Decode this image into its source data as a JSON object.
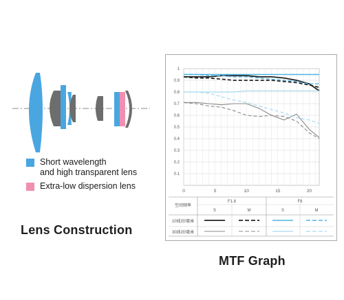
{
  "lens_construction": {
    "title": "Lens Construction",
    "legend": [
      {
        "text": "Short wavelength\nand high transparent lens",
        "color": "#4aa6e0",
        "icon": "blue-square"
      },
      {
        "text": "Extra-low dispersion lens",
        "color": "#f28fb0",
        "icon": "pink-square"
      }
    ],
    "colors": {
      "blue_lens": "#4aa6e0",
      "pink_lens": "#f28fb0",
      "gray_lens": "#6d6d6d",
      "axis": "#8a8a8a"
    }
  },
  "mtf_graph": {
    "title": "MTF Graph",
    "table": {
      "header_col": "空间频率",
      "apertures": [
        "F1.8",
        "F8"
      ],
      "sub_labels": [
        "S",
        "M",
        "S",
        "M"
      ],
      "rows": [
        "10线对/毫米",
        "30线对/毫米"
      ]
    },
    "colors": {
      "f18": "#222222",
      "f18_30": "#8a8a8a",
      "f8_10": "#4fb3e3",
      "f8_30": "#a8daf2",
      "grid": "#cfcfcf"
    }
  },
  "chart_data": {
    "type": "line",
    "title": "MTF Graph",
    "xlabel": "",
    "ylabel": "",
    "xlim": [
      0,
      21.6
    ],
    "ylim": [
      0,
      1
    ],
    "xticks": [
      0,
      5,
      10,
      15,
      20
    ],
    "yticks": [
      0.1,
      0.2,
      0.3,
      0.4,
      0.5,
      0.6,
      0.7,
      0.8,
      0.9,
      1
    ],
    "ytick_labels": [
      "0.1",
      "0.2",
      "0.3",
      "0.4",
      "0.5",
      "0.6",
      "0.7",
      "0.8",
      "0.9",
      "1"
    ],
    "grid": true,
    "x": [
      0,
      2,
      4,
      6,
      8,
      10,
      12,
      14,
      16,
      18,
      20,
      21.6
    ],
    "series": [
      {
        "aperture": "F1.8",
        "freq": "10",
        "orientation": "S",
        "color": "#222222",
        "dash": "solid",
        "width": 1.8,
        "values": [
          0.93,
          0.93,
          0.93,
          0.94,
          0.94,
          0.94,
          0.93,
          0.93,
          0.92,
          0.9,
          0.87,
          0.81
        ]
      },
      {
        "aperture": "F1.8",
        "freq": "10",
        "orientation": "M",
        "color": "#222222",
        "dash": "dashed",
        "width": 1.8,
        "values": [
          0.93,
          0.92,
          0.92,
          0.91,
          0.9,
          0.9,
          0.9,
          0.9,
          0.89,
          0.88,
          0.86,
          0.84
        ]
      },
      {
        "aperture": "F1.8",
        "freq": "30",
        "orientation": "S",
        "color": "#8a8a8a",
        "dash": "solid",
        "width": 1.1,
        "values": [
          0.71,
          0.71,
          0.7,
          0.69,
          0.7,
          0.7,
          0.66,
          0.6,
          0.56,
          0.61,
          0.48,
          0.41
        ]
      },
      {
        "aperture": "F1.8",
        "freq": "30",
        "orientation": "M",
        "color": "#8a8a8a",
        "dash": "dashed",
        "width": 1.1,
        "values": [
          0.71,
          0.7,
          0.68,
          0.67,
          0.64,
          0.6,
          0.59,
          0.6,
          0.59,
          0.55,
          0.45,
          0.4
        ]
      },
      {
        "aperture": "F8",
        "freq": "10",
        "orientation": "S",
        "color": "#4fb3e3",
        "dash": "solid",
        "width": 1.4,
        "values": [
          0.95,
          0.95,
          0.95,
          0.95,
          0.95,
          0.95,
          0.95,
          0.95,
          0.95,
          0.95,
          0.95,
          0.95
        ]
      },
      {
        "aperture": "F8",
        "freq": "10",
        "orientation": "M",
        "color": "#4fb3e3",
        "dash": "dashed",
        "width": 1.4,
        "values": [
          0.95,
          0.95,
          0.94,
          0.94,
          0.93,
          0.93,
          0.92,
          0.91,
          0.9,
          0.89,
          0.87,
          0.87
        ]
      },
      {
        "aperture": "F8",
        "freq": "30",
        "orientation": "S",
        "color": "#a8daf2",
        "dash": "solid",
        "width": 1.2,
        "values": [
          0.8,
          0.8,
          0.8,
          0.8,
          0.8,
          0.81,
          0.81,
          0.81,
          0.81,
          0.81,
          0.81,
          0.81
        ]
      },
      {
        "aperture": "F8",
        "freq": "30",
        "orientation": "M",
        "color": "#a8daf2",
        "dash": "dashed",
        "width": 1.2,
        "values": [
          0.8,
          0.8,
          0.79,
          0.76,
          0.73,
          0.71,
          0.68,
          0.65,
          0.62,
          0.58,
          0.56,
          0.53
        ]
      }
    ]
  }
}
